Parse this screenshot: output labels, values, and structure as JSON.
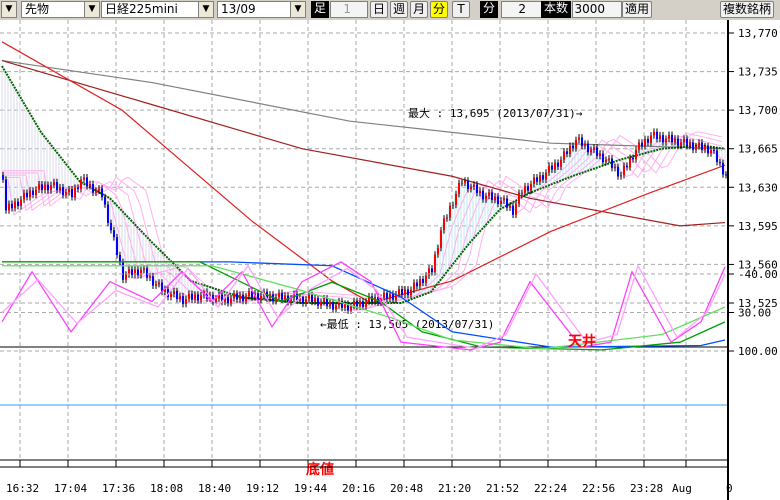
{
  "toolbar": {
    "market": "先物",
    "symbol": "日経225mini",
    "contract": "13/09",
    "bar_label": "足",
    "bar_value": "1",
    "day": "日",
    "week": "週",
    "month": "月",
    "minute": "分",
    "tick": "T",
    "interval_label": "分",
    "interval_value": "2",
    "count_label": "本数",
    "count_value": "3000",
    "apply": "適用",
    "multi": "複数銘柄",
    "active_color": "#ffff00"
  },
  "chart_data": {
    "type": "line",
    "title": "",
    "x_unit": "2-minute bar index",
    "xticks": [
      {
        "i": 6,
        "label": "16:32"
      },
      {
        "i": 22,
        "label": "17:04"
      },
      {
        "i": 38,
        "label": "17:36"
      },
      {
        "i": 54,
        "label": "18:08"
      },
      {
        "i": 70,
        "label": "18:40"
      },
      {
        "i": 86,
        "label": "19:12"
      },
      {
        "i": 102,
        "label": "19:44"
      },
      {
        "i": 118,
        "label": "20:16"
      },
      {
        "i": 134,
        "label": "20:48"
      },
      {
        "i": 150,
        "label": "21:20"
      },
      {
        "i": 166,
        "label": "21:52"
      },
      {
        "i": 182,
        "label": "22:24"
      },
      {
        "i": 198,
        "label": "22:56"
      },
      {
        "i": 214,
        "label": "23:28"
      },
      {
        "i": 228,
        "label": "Aug"
      },
      {
        "i": 242,
        "label": "0"
      }
    ],
    "price": {
      "ylim": [
        13505,
        13780
      ],
      "yticks": [
        "13,770",
        "13,735",
        "13,700",
        "13,665",
        "13,630",
        "13,595",
        "13,560",
        "13,525"
      ],
      "ytick_values": [
        13770,
        13735,
        13700,
        13665,
        13630,
        13595,
        13560,
        13525
      ],
      "close": [
        [
          1,
          13609
        ],
        [
          10,
          13627
        ],
        [
          16,
          13632
        ],
        [
          23,
          13623
        ],
        [
          26,
          13637
        ],
        [
          33,
          13623
        ],
        [
          36,
          13591
        ],
        [
          40,
          13550
        ],
        [
          46,
          13555
        ],
        [
          53,
          13537
        ],
        [
          60,
          13528
        ],
        [
          66,
          13532
        ],
        [
          73,
          13528
        ],
        [
          83,
          13532
        ],
        [
          93,
          13530
        ],
        [
          103,
          13528
        ],
        [
          110,
          13523
        ],
        [
          116,
          13522
        ],
        [
          123,
          13528
        ],
        [
          130,
          13532
        ],
        [
          136,
          13537
        ],
        [
          143,
          13555
        ],
        [
          146,
          13591
        ],
        [
          150,
          13618
        ],
        [
          153,
          13636
        ],
        [
          160,
          13623
        ],
        [
          166,
          13618
        ],
        [
          170,
          13609
        ],
        [
          173,
          13627
        ],
        [
          180,
          13641
        ],
        [
          186,
          13655
        ],
        [
          191,
          13673
        ],
        [
          196,
          13664
        ],
        [
          201,
          13655
        ],
        [
          206,
          13641
        ],
        [
          211,
          13664
        ],
        [
          216,
          13677
        ],
        [
          223,
          13673
        ],
        [
          230,
          13668
        ],
        [
          236,
          13664
        ],
        [
          241,
          13641
        ]
      ],
      "series": [
        {
          "name": "MA-long",
          "color": "#808080",
          "points": [
            [
              0,
              13745
            ],
            [
              50,
              13725
            ],
            [
              116,
              13690
            ],
            [
              183,
              13670
            ],
            [
              241,
              13665
            ]
          ]
        },
        {
          "name": "MA-mid",
          "color": "#a02020",
          "points": [
            [
              0,
              13745
            ],
            [
              50,
              13705
            ],
            [
              100,
              13665
            ],
            [
              150,
              13640
            ],
            [
              176,
              13620
            ],
            [
              226,
              13595
            ],
            [
              241,
              13598
            ]
          ]
        },
        {
          "name": "MA-short",
          "color": "#e02020",
          "points": [
            [
              0,
              13762
            ],
            [
              40,
              13700
            ],
            [
              83,
              13600
            ],
            [
              110,
              13545
            ],
            [
              123,
              13525
            ],
            [
              150,
              13545
            ],
            [
              183,
              13590
            ],
            [
              216,
              13625
            ],
            [
              241,
              13650
            ]
          ]
        },
        {
          "name": "MA-dotted",
          "color": "#006400",
          "points": [
            [
              0,
              13740
            ],
            [
              13,
              13680
            ],
            [
              26,
              13635
            ],
            [
              36,
              13620
            ],
            [
              50,
              13580
            ],
            [
              63,
              13545
            ],
            [
              80,
              13530
            ],
            [
              100,
              13525
            ],
            [
              133,
              13525
            ],
            [
              143,
              13535
            ],
            [
              156,
              13580
            ],
            [
              166,
              13610
            ],
            [
              176,
              13625
            ],
            [
              190,
              13640
            ],
            [
              206,
              13655
            ],
            [
              220,
              13665
            ],
            [
              233,
              13668
            ],
            [
              241,
              13665
            ]
          ]
        }
      ],
      "annotations": {
        "high": "最大 : 13,695 (2013/07/31)→",
        "low": "←最低 : 13,505 (2013/07/31)"
      }
    },
    "oscillator": {
      "ylim": [
        -100,
        105
      ],
      "yticks": [
        "100.00",
        "30.00",
        "-40.00"
      ],
      "ytick_values": [
        100,
        30,
        -40
      ],
      "series": [
        {
          "name": "blue",
          "color": "#0050ff",
          "points": [
            [
              0,
              -62
            ],
            [
              76,
              -62
            ],
            [
              110,
              -55
            ],
            [
              133,
              2
            ],
            [
              150,
              65
            ],
            [
              183,
              93
            ],
            [
              233,
              90
            ],
            [
              241,
              80
            ]
          ]
        },
        {
          "name": "green",
          "color": "#00a000",
          "points": [
            [
              0,
              -62
            ],
            [
              66,
              -62
            ],
            [
              93,
              10
            ],
            [
              110,
              -25
            ],
            [
              126,
              10
            ],
            [
              140,
              65
            ],
            [
              160,
              93
            ],
            [
              200,
              98
            ],
            [
              226,
              84
            ],
            [
              241,
              47
            ]
          ]
        },
        {
          "name": "lightgreen",
          "color": "#60e060",
          "points": [
            [
              0,
              -55
            ],
            [
              70,
              -55
            ],
            [
              100,
              -10
            ],
            [
              130,
              40
            ],
            [
              150,
              80
            ],
            [
              180,
              96
            ],
            [
              220,
              70
            ],
            [
              241,
              20
            ]
          ]
        },
        {
          "name": "pink",
          "color": "#ff40ff",
          "points": [
            [
              0,
              47
            ],
            [
              10,
              -44
            ],
            [
              23,
              65
            ],
            [
              36,
              -26
            ],
            [
              50,
              10
            ],
            [
              60,
              -44
            ],
            [
              70,
              10
            ],
            [
              80,
              -44
            ],
            [
              90,
              56
            ],
            [
              100,
              -26
            ],
            [
              113,
              -62
            ],
            [
              123,
              -26
            ],
            [
              133,
              84
            ],
            [
              156,
              98
            ],
            [
              166,
              84
            ],
            [
              176,
              -26
            ],
            [
              193,
              93
            ],
            [
              203,
              84
            ],
            [
              210,
              -44
            ],
            [
              223,
              84
            ],
            [
              233,
              47
            ],
            [
              241,
              -53
            ]
          ]
        },
        {
          "name": "lightpink",
          "color": "#ffa0ff",
          "points": [
            [
              0,
              30
            ],
            [
              12,
              -30
            ],
            [
              25,
              50
            ],
            [
              38,
              -10
            ],
            [
              52,
              20
            ],
            [
              62,
              -50
            ],
            [
              72,
              20
            ],
            [
              82,
              -55
            ],
            [
              92,
              40
            ],
            [
              102,
              -10
            ],
            [
              115,
              -50
            ],
            [
              125,
              -10
            ],
            [
              135,
              75
            ],
            [
              158,
              95
            ],
            [
              168,
              70
            ],
            [
              178,
              -40
            ],
            [
              195,
              85
            ],
            [
              205,
              70
            ],
            [
              212,
              -55
            ],
            [
              225,
              75
            ],
            [
              235,
              30
            ],
            [
              241,
              -40
            ]
          ]
        }
      ],
      "annotations": {
        "top": "天井",
        "bottom": "底値"
      }
    }
  }
}
